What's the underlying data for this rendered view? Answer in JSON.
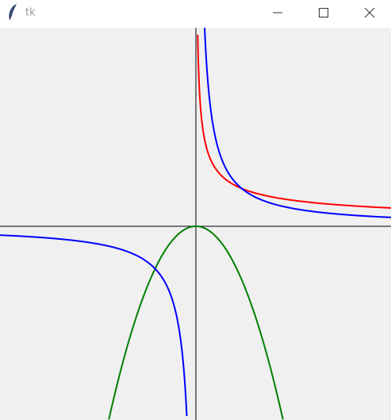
{
  "window": {
    "title": "tk"
  }
}
